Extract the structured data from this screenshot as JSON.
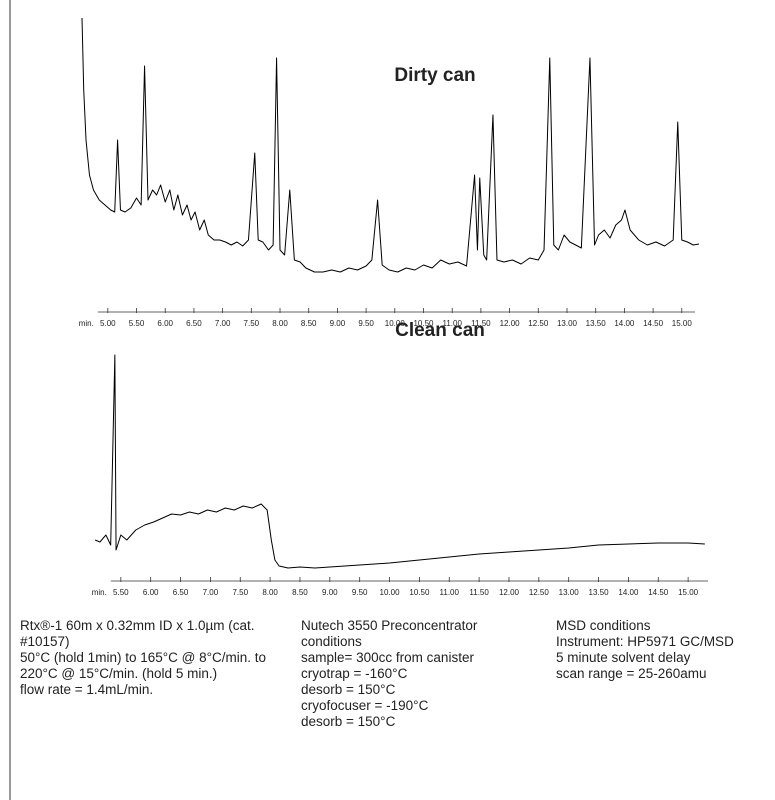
{
  "chart_data": [
    {
      "type": "line",
      "title": "Dirty can",
      "x_label": "min.",
      "color": "#000000",
      "xlim": [
        4.55,
        15.3
      ],
      "ylim": [
        0,
        275
      ],
      "xticks": [
        {
          "value": 5,
          "label": "5.00"
        },
        {
          "value": 5.5,
          "label": "5.50"
        },
        {
          "value": 6,
          "label": "6.00"
        },
        {
          "value": 6.5,
          "label": "6.50"
        },
        {
          "value": 7,
          "label": "7.00"
        },
        {
          "value": 7.5,
          "label": "7.50"
        },
        {
          "value": 8,
          "label": "8.00"
        },
        {
          "value": 8.5,
          "label": "8.50"
        },
        {
          "value": 9,
          "label": "9.00"
        },
        {
          "value": 9.5,
          "label": "9.50"
        },
        {
          "value": 10,
          "label": "10.00"
        },
        {
          "value": 10.5,
          "label": "10.50"
        },
        {
          "value": 11,
          "label": "11.00"
        },
        {
          "value": 11.5,
          "label": "11.50"
        },
        {
          "value": 12,
          "label": "12.00"
        },
        {
          "value": 12.5,
          "label": "12.50"
        },
        {
          "value": 13,
          "label": "13.00"
        },
        {
          "value": 13.5,
          "label": "13.50"
        },
        {
          "value": 14,
          "label": "14.00"
        },
        {
          "value": 14.5,
          "label": "14.50"
        },
        {
          "value": 15,
          "label": "15.00"
        }
      ],
      "x": [
        4.55,
        4.58,
        4.62,
        4.68,
        4.75,
        4.85,
        4.95,
        5.05,
        5.12,
        5.17,
        5.22,
        5.3,
        5.4,
        5.5,
        5.58,
        5.64,
        5.7,
        5.78,
        5.85,
        5.92,
        6.0,
        6.08,
        6.15,
        6.22,
        6.3,
        6.38,
        6.45,
        6.52,
        6.6,
        6.68,
        6.75,
        6.85,
        6.95,
        7.05,
        7.15,
        7.25,
        7.35,
        7.45,
        7.56,
        7.62,
        7.7,
        7.8,
        7.88,
        7.94,
        8.0,
        8.08,
        8.17,
        8.25,
        8.35,
        8.45,
        8.6,
        8.75,
        8.9,
        9.05,
        9.2,
        9.35,
        9.5,
        9.6,
        9.7,
        9.78,
        9.9,
        10.05,
        10.2,
        10.35,
        10.5,
        10.65,
        10.8,
        10.95,
        11.1,
        11.25,
        11.39,
        11.44,
        11.48,
        11.55,
        11.6,
        11.71,
        11.78,
        11.9,
        12.05,
        12.2,
        12.35,
        12.5,
        12.6,
        12.7,
        12.77,
        12.85,
        12.95,
        13.05,
        13.15,
        13.25,
        13.4,
        13.48,
        13.55,
        13.65,
        13.75,
        13.85,
        13.95,
        14.01,
        14.1,
        14.25,
        14.4,
        14.55,
        14.7,
        14.85,
        14.93,
        15.0,
        15.1,
        15.2,
        15.3
      ],
      "values": [
        272,
        200,
        150,
        115,
        100,
        90,
        85,
        80,
        78,
        150,
        80,
        78,
        82,
        92,
        85,
        224,
        90,
        100,
        95,
        105,
        88,
        100,
        80,
        95,
        75,
        85,
        70,
        78,
        60,
        70,
        55,
        50,
        50,
        48,
        45,
        48,
        44,
        50,
        137,
        50,
        48,
        40,
        45,
        232,
        40,
        35,
        100,
        30,
        28,
        22,
        18,
        18,
        20,
        18,
        22,
        20,
        24,
        30,
        90,
        25,
        20,
        18,
        22,
        20,
        25,
        22,
        30,
        26,
        28,
        24,
        115,
        40,
        112,
        35,
        30,
        175,
        30,
        28,
        30,
        26,
        32,
        30,
        40,
        232,
        45,
        40,
        55,
        48,
        45,
        42,
        232,
        45,
        55,
        60,
        52,
        65,
        70,
        80,
        60,
        50,
        45,
        48,
        44,
        50,
        168,
        50,
        48,
        45,
        46
      ]
    },
    {
      "type": "line",
      "title": "Clean can",
      "x_label": "min.",
      "color": "#000000",
      "xlim": [
        4.9,
        15.4
      ],
      "ylim": [
        0,
        235
      ],
      "xticks": [
        {
          "value": 5.5,
          "label": "5.50"
        },
        {
          "value": 6,
          "label": "6.00"
        },
        {
          "value": 6.5,
          "label": "6.50"
        },
        {
          "value": 7,
          "label": "7.00"
        },
        {
          "value": 7.5,
          "label": "7.50"
        },
        {
          "value": 8,
          "label": "8.00"
        },
        {
          "value": 8.5,
          "label": "8.50"
        },
        {
          "value": 9,
          "label": "9.00"
        },
        {
          "value": 9.5,
          "label": "9.50"
        },
        {
          "value": 10,
          "label": "10.00"
        },
        {
          "value": 10.5,
          "label": "10.50"
        },
        {
          "value": 11,
          "label": "11.00"
        },
        {
          "value": 11.5,
          "label": "11.50"
        },
        {
          "value": 12,
          "label": "12.00"
        },
        {
          "value": 12.5,
          "label": "12.50"
        },
        {
          "value": 13,
          "label": "13.00"
        },
        {
          "value": 13.5,
          "label": "13.50"
        },
        {
          "value": 14,
          "label": "14.00"
        },
        {
          "value": 14.5,
          "label": "14.50"
        },
        {
          "value": 15,
          "label": "15.00"
        }
      ],
      "x": [
        5.07,
        5.15,
        5.25,
        5.33,
        5.4,
        5.42,
        5.5,
        5.6,
        5.75,
        5.9,
        6.05,
        6.2,
        6.35,
        6.5,
        6.65,
        6.8,
        6.95,
        7.1,
        7.25,
        7.4,
        7.55,
        7.7,
        7.85,
        7.95,
        8.02,
        8.08,
        8.15,
        8.3,
        8.5,
        8.75,
        9.0,
        9.5,
        10.0,
        10.5,
        11.0,
        11.5,
        12.0,
        12.5,
        13.0,
        13.5,
        14.0,
        14.5,
        15.0,
        15.28
      ],
      "values": [
        40,
        38,
        45,
        35,
        225,
        30,
        45,
        40,
        50,
        55,
        58,
        62,
        66,
        65,
        68,
        66,
        70,
        68,
        72,
        70,
        74,
        72,
        76,
        70,
        40,
        20,
        14,
        12,
        13,
        12,
        13,
        15,
        17,
        20,
        23,
        26,
        28,
        30,
        32,
        35,
        36,
        37,
        37,
        36
      ]
    }
  ],
  "conditions": [
    [
      "Rtx®-1 60m x 0.32mm ID x 1.0µm (cat. #10157)",
      "50°C (hold 1min) to 165°C @ 8°C/min. to 220°C @ 15°C/min. (hold 5 min.)",
      "flow rate = 1.4mL/min."
    ],
    [
      "Nutech 3550 Preconcentrator conditions",
      "sample= 300cc from canister",
      "cryotrap = -160°C",
      "desorb = 150°C",
      "cryofocuser = -190°C",
      "desorb = 150°C"
    ],
    [
      "MSD conditions",
      "Instrument: HP5971 GC/MSD",
      "5 minute solvent delay",
      "scan range = 25-260amu"
    ]
  ]
}
